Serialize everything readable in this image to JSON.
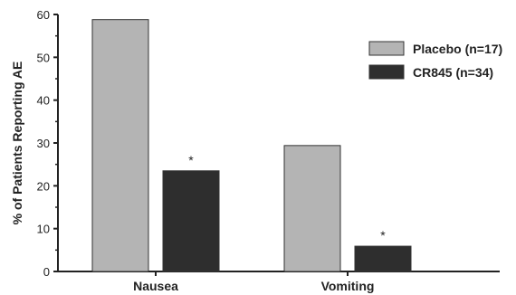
{
  "chart_data": {
    "type": "bar",
    "title": "",
    "xlabel": "",
    "ylabel": "% of Patients Reporting AE",
    "ylim": [
      0,
      60
    ],
    "yticks": [
      0,
      10,
      20,
      30,
      40,
      50,
      60
    ],
    "categories": [
      "Nausea",
      "Vomiting"
    ],
    "series": [
      {
        "name": "Placebo (n=17)",
        "values": [
          58.8,
          29.4
        ],
        "color": "#b4b4b4"
      },
      {
        "name": "CR845 (n=34)",
        "values": [
          23.5,
          5.9
        ],
        "color": "#2e2e2e"
      }
    ],
    "annotations": [
      {
        "series": 1,
        "category": 0,
        "text": "*"
      },
      {
        "series": 1,
        "category": 1,
        "text": "*"
      }
    ],
    "legend_position": "top-right",
    "grid": false
  }
}
